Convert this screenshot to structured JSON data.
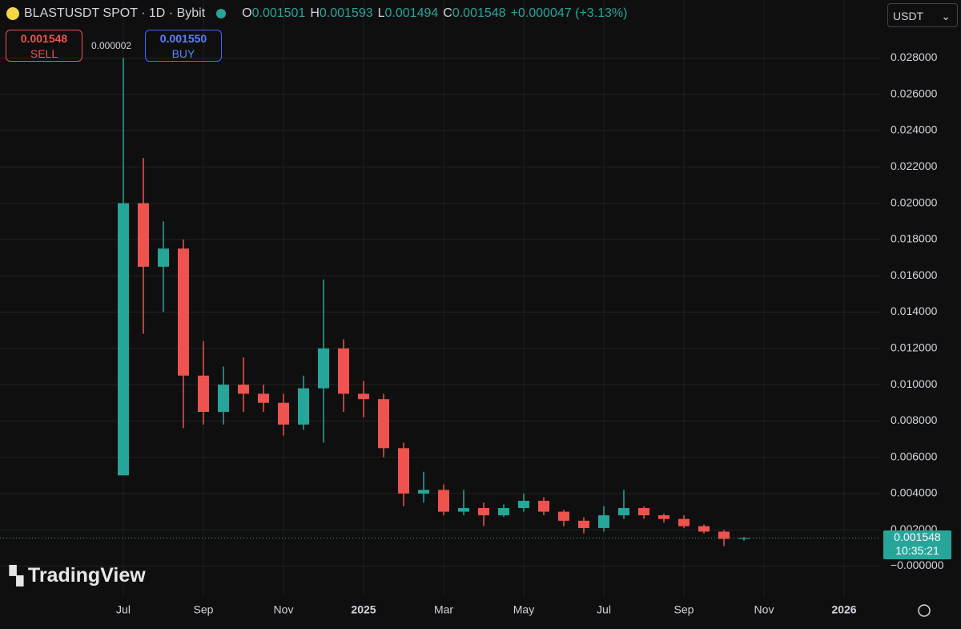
{
  "header": {
    "symbol": "BLASTUSDT SPOT · 1D · Bybit",
    "ohlc": [
      {
        "label": "O",
        "value": "0.001501"
      },
      {
        "label": "H",
        "value": "0.001593"
      },
      {
        "label": "L",
        "value": "0.001494"
      },
      {
        "label": "C",
        "value": "0.001548"
      }
    ],
    "change": "+0.000047 (+3.13%)"
  },
  "trade": {
    "sell_price": "0.001548",
    "sell": "SELL",
    "spread": "0.000002",
    "buy_price": "0.001550",
    "buy": "BUY"
  },
  "currency": "USDT",
  "countdown": "10:35:21",
  "logo": "TradingView",
  "chart_data": {
    "type": "candlestick",
    "categories": [
      "Jul",
      null,
      null,
      null,
      "Sep",
      null,
      null,
      null,
      "Nov",
      null,
      null,
      null,
      "2025",
      null,
      null,
      null,
      "Mar",
      null,
      null,
      null,
      "May",
      null,
      null,
      null,
      "Jul",
      null,
      null,
      null,
      "Sep",
      null,
      null,
      null,
      "Nov",
      null,
      null,
      null,
      "2026"
    ],
    "open": [
      0.005,
      0.02,
      0.0165,
      0.0175,
      0.0105,
      0.0085,
      0.01,
      0.0095,
      0.009,
      0.0078,
      0.0098,
      0.012,
      0.0095,
      0.0092,
      0.0065,
      0.004,
      0.0042,
      0.003,
      0.0032,
      0.0028,
      0.0032,
      0.0036,
      0.003,
      0.0025,
      0.0021,
      0.0028,
      0.0032,
      0.0028,
      0.0026,
      0.0022,
      0.0019,
      0.0015,
      null,
      null,
      null,
      null,
      null
    ],
    "high": [
      0.028,
      0.0225,
      0.019,
      0.018,
      0.0124,
      0.011,
      0.0115,
      0.01,
      0.0095,
      0.0105,
      0.0158,
      0.0125,
      0.0102,
      0.0095,
      0.0068,
      0.0052,
      0.0045,
      0.0042,
      0.0035,
      0.0034,
      0.004,
      0.0038,
      0.0031,
      0.0027,
      0.0033,
      0.0042,
      0.0033,
      0.0029,
      0.0028,
      0.0023,
      0.002,
      0.0016,
      null,
      null,
      null,
      null,
      null
    ],
    "low": [
      0.005,
      0.0128,
      0.014,
      0.0076,
      0.0078,
      0.0078,
      0.0085,
      0.0085,
      0.0072,
      0.0075,
      0.0068,
      0.0085,
      0.0082,
      0.006,
      0.0033,
      0.0035,
      0.0028,
      0.0028,
      0.0022,
      0.0027,
      0.003,
      0.0028,
      0.0022,
      0.0018,
      0.0019,
      0.0026,
      0.0026,
      0.0024,
      0.0021,
      0.0018,
      0.0011,
      0.0014,
      null,
      null,
      null,
      null,
      null
    ],
    "close": [
      0.02,
      0.0165,
      0.0175,
      0.0105,
      0.0085,
      0.01,
      0.0095,
      0.009,
      0.0078,
      0.0098,
      0.012,
      0.0095,
      0.0092,
      0.0065,
      0.004,
      0.0042,
      0.003,
      0.0032,
      0.0028,
      0.0032,
      0.0036,
      0.003,
      0.0025,
      0.0021,
      0.0028,
      0.0032,
      0.0028,
      0.0026,
      0.0022,
      0.0019,
      0.0015,
      0.00155,
      null,
      null,
      null,
      null,
      null
    ],
    "up_color": "#26a69a",
    "down_color": "#ef5350",
    "ylim": [
      -0.0017,
      0.0312
    ],
    "yticks": [
      {
        "value": 0,
        "label": "−0.000000"
      },
      {
        "value": 0.002,
        "label": "0.002000"
      },
      {
        "value": 0.004,
        "label": "0.004000"
      },
      {
        "value": 0.006,
        "label": "0.006000"
      },
      {
        "value": 0.008,
        "label": "0.008000"
      },
      {
        "value": 0.01,
        "label": "0.010000"
      },
      {
        "value": 0.012,
        "label": "0.012000"
      },
      {
        "value": 0.014,
        "label": "0.014000"
      },
      {
        "value": 0.016,
        "label": "0.016000"
      },
      {
        "value": 0.018,
        "label": "0.018000"
      },
      {
        "value": 0.02,
        "label": "0.020000"
      },
      {
        "value": 0.022,
        "label": "0.022000"
      },
      {
        "value": 0.024,
        "label": "0.024000"
      },
      {
        "value": 0.026,
        "label": "0.026000"
      },
      {
        "value": 0.028,
        "label": "0.028000"
      }
    ],
    "grid": true,
    "last_price": 0.001548
  }
}
